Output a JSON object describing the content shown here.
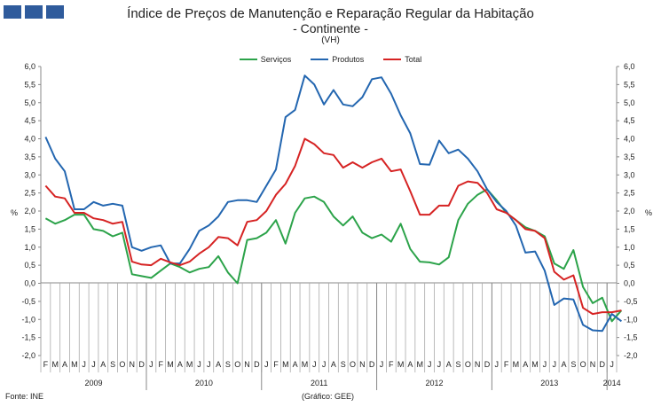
{
  "header": {
    "logo_icon": "ine-logo-icon",
    "title": "Índice de Preços de Manutenção e Reparação Regular da Habitação",
    "subtitle": "- Continente -",
    "unit": "(VH)"
  },
  "footer": {
    "source": "Fonte: INE",
    "credit": "(Gráfico: GEE)"
  },
  "chart_data": {
    "type": "line",
    "ylabel_left": "%",
    "ylabel_right": "%",
    "ylim": [
      -2.0,
      6.0
    ],
    "yticks": [
      "6,0",
      "5,5",
      "5,0",
      "4,5",
      "4,0",
      "3,5",
      "3,0",
      "2,5",
      "2,0",
      "1,5",
      "1,0",
      "0,5",
      "0,0",
      "-0,5",
      "-1,0",
      "-1,5",
      "-2,0"
    ],
    "legend_position": "top-center",
    "grid": false,
    "month_labels": [
      "F",
      "M",
      "A",
      "M",
      "J",
      "J",
      "A",
      "S",
      "O",
      "N",
      "D",
      "J",
      "F",
      "M",
      "A",
      "M",
      "J",
      "J",
      "A",
      "S",
      "O",
      "N",
      "D",
      "J",
      "F",
      "M",
      "A",
      "M",
      "J",
      "J",
      "A",
      "S",
      "O",
      "N",
      "D",
      "J",
      "F",
      "M",
      "A",
      "M",
      "J",
      "J",
      "A",
      "S",
      "O",
      "N",
      "D",
      "J",
      "F",
      "M",
      "A",
      "M",
      "J",
      "J",
      "A",
      "S",
      "O",
      "N",
      "D",
      "J"
    ],
    "years": [
      "2009",
      "2010",
      "2011",
      "2012",
      "2013",
      "2014"
    ],
    "series": [
      {
        "name": "Serviços",
        "color": "#2ca34a",
        "values": [
          1.8,
          1.65,
          1.75,
          1.9,
          1.9,
          1.5,
          1.45,
          1.3,
          1.4,
          0.25,
          0.2,
          0.15,
          0.35,
          0.55,
          0.45,
          0.3,
          0.4,
          0.45,
          0.75,
          0.3,
          0.0,
          1.2,
          1.25,
          1.4,
          1.75,
          1.1,
          1.95,
          2.35,
          2.4,
          2.25,
          1.85,
          1.6,
          1.85,
          1.4,
          1.25,
          1.35,
          1.15,
          1.65,
          0.95,
          0.6,
          0.58,
          0.52,
          0.72,
          1.75,
          2.2,
          2.45,
          2.6,
          2.3,
          1.95,
          1.75,
          1.55,
          1.45,
          1.3,
          0.55,
          0.4,
          0.92,
          -0.1,
          -0.55,
          -0.4,
          -1.05,
          -0.75
        ]
      },
      {
        "name": "Produtos",
        "color": "#2366b0",
        "values": [
          4.05,
          3.45,
          3.1,
          2.05,
          2.05,
          2.25,
          2.15,
          2.2,
          2.15,
          1.0,
          0.9,
          1.0,
          1.05,
          0.55,
          0.55,
          0.95,
          1.45,
          1.6,
          1.85,
          2.25,
          2.3,
          2.3,
          2.25,
          2.7,
          3.15,
          4.6,
          4.8,
          5.75,
          5.5,
          4.95,
          5.35,
          4.95,
          4.9,
          5.15,
          5.65,
          5.7,
          5.25,
          4.65,
          4.15,
          3.3,
          3.28,
          3.95,
          3.6,
          3.7,
          3.45,
          3.1,
          2.6,
          2.25,
          2.0,
          1.6,
          0.85,
          0.88,
          0.35,
          -0.6,
          -0.42,
          -0.45,
          -1.15,
          -1.3,
          -1.32,
          -0.85,
          -1.05
        ]
      },
      {
        "name": "Total",
        "color": "#d62323",
        "values": [
          2.7,
          2.4,
          2.35,
          1.95,
          1.95,
          1.8,
          1.75,
          1.65,
          1.7,
          0.6,
          0.52,
          0.5,
          0.68,
          0.58,
          0.5,
          0.6,
          0.82,
          1.0,
          1.28,
          1.25,
          1.05,
          1.7,
          1.75,
          2.0,
          2.45,
          2.75,
          3.25,
          4.0,
          3.85,
          3.6,
          3.55,
          3.2,
          3.35,
          3.2,
          3.35,
          3.45,
          3.1,
          3.15,
          2.55,
          1.9,
          1.9,
          2.15,
          2.15,
          2.7,
          2.82,
          2.78,
          2.5,
          2.05,
          1.95,
          1.75,
          1.5,
          1.45,
          1.25,
          0.32,
          0.1,
          0.22,
          -0.68,
          -0.85,
          -0.8,
          -0.8,
          -0.75
        ]
      }
    ]
  }
}
